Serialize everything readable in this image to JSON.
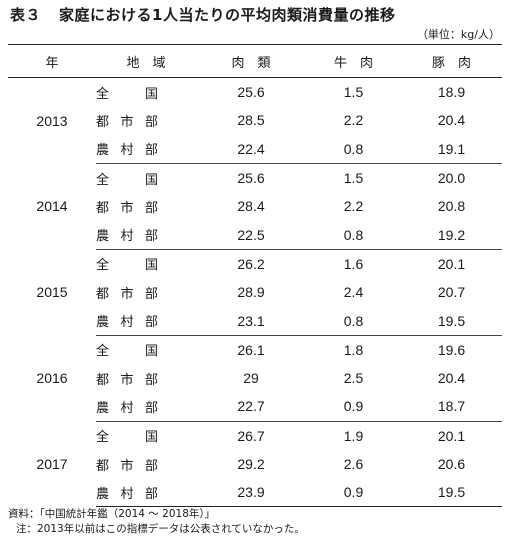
{
  "title": {
    "number": "表３",
    "text": "家庭における1人当たりの平均肉類消費量の推移"
  },
  "unit": "（単位：kg/人）",
  "headers": {
    "year": "年",
    "area": "地　域",
    "meat": "肉　類",
    "beef": "牛　肉",
    "pork": "豚　肉"
  },
  "groups": [
    {
      "year": "2013",
      "rows": [
        {
          "area": "全　国",
          "meat": "25.6",
          "beef": "1.5",
          "pork": "18.9"
        },
        {
          "area": "都市部",
          "meat": "28.5",
          "beef": "2.2",
          "pork": "20.4"
        },
        {
          "area": "農村部",
          "meat": "22.4",
          "beef": "0.8",
          "pork": "19.1"
        }
      ]
    },
    {
      "year": "2014",
      "rows": [
        {
          "area": "全　国",
          "meat": "25.6",
          "beef": "1.5",
          "pork": "20.0"
        },
        {
          "area": "都市部",
          "meat": "28.4",
          "beef": "2.2",
          "pork": "20.8"
        },
        {
          "area": "農村部",
          "meat": "22.5",
          "beef": "0.8",
          "pork": "19.2"
        }
      ]
    },
    {
      "year": "2015",
      "rows": [
        {
          "area": "全　国",
          "meat": "26.2",
          "beef": "1.6",
          "pork": "20.1"
        },
        {
          "area": "都市部",
          "meat": "28.9",
          "beef": "2.4",
          "pork": "20.7"
        },
        {
          "area": "農村部",
          "meat": "23.1",
          "beef": "0.8",
          "pork": "19.5"
        }
      ]
    },
    {
      "year": "2016",
      "rows": [
        {
          "area": "全　国",
          "meat": "26.1",
          "beef": "1.8",
          "pork": "19.6"
        },
        {
          "area": "都市部",
          "meat": "29",
          "beef": "2.5",
          "pork": "20.4"
        },
        {
          "area": "農村部",
          "meat": "22.7",
          "beef": "0.9",
          "pork": "18.7"
        }
      ]
    },
    {
      "year": "2017",
      "rows": [
        {
          "area": "全　国",
          "meat": "26.7",
          "beef": "1.9",
          "pork": "20.1"
        },
        {
          "area": "都市部",
          "meat": "29.2",
          "beef": "2.6",
          "pork": "20.6"
        },
        {
          "area": "農村部",
          "meat": "23.9",
          "beef": "0.9",
          "pork": "19.5"
        }
      ]
    }
  ],
  "notes": {
    "source": "資料：「中国統計年鑑（2014 ～ 2018年）」",
    "note": "注：2013年以前はこの指標データは公表されていなかった。"
  }
}
